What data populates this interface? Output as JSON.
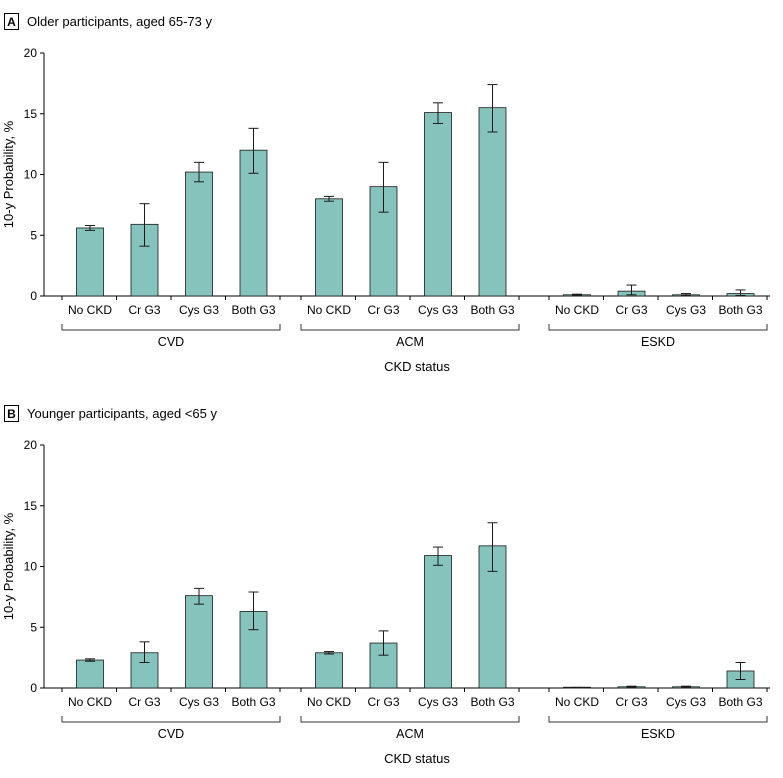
{
  "bar_color": "#86c3bc",
  "chart_data": [
    {
      "type": "bar",
      "panel_letter": "A",
      "title": "Older participants, aged 65-73 y",
      "ylabel": "10-y Probability, %",
      "xlabel": "CKD status",
      "ylim": [
        0,
        20
      ],
      "yticks": [
        0,
        5,
        10,
        15,
        20
      ],
      "categories": [
        "No CKD",
        "Cr G3",
        "Cys G3",
        "Both G3"
      ],
      "groups": [
        {
          "name": "CVD",
          "values": [
            5.6,
            5.9,
            10.2,
            12.0
          ],
          "err_low": [
            5.4,
            4.1,
            9.4,
            10.1
          ],
          "err_high": [
            5.8,
            7.6,
            11.0,
            13.8
          ]
        },
        {
          "name": "ACM",
          "values": [
            8.0,
            9.0,
            15.1,
            15.5
          ],
          "err_low": [
            7.8,
            6.9,
            14.2,
            13.5
          ],
          "err_high": [
            8.2,
            11.0,
            15.9,
            17.4
          ]
        },
        {
          "name": "ESKD",
          "values": [
            0.1,
            0.4,
            0.1,
            0.2
          ],
          "err_low": [
            0.05,
            0.1,
            0.05,
            0.05
          ],
          "err_high": [
            0.15,
            0.9,
            0.2,
            0.5
          ]
        }
      ]
    },
    {
      "type": "bar",
      "panel_letter": "B",
      "title": "Younger participants, aged <65 y",
      "ylabel": "10-y Probability, %",
      "xlabel": "CKD status",
      "ylim": [
        0,
        20
      ],
      "yticks": [
        0,
        5,
        10,
        15,
        20
      ],
      "categories": [
        "No CKD",
        "Cr G3",
        "Cys G3",
        "Both G3"
      ],
      "groups": [
        {
          "name": "CVD",
          "values": [
            2.3,
            2.9,
            7.6,
            6.3
          ],
          "err_low": [
            2.2,
            2.1,
            6.9,
            4.8
          ],
          "err_high": [
            2.4,
            3.8,
            8.2,
            7.9
          ]
        },
        {
          "name": "ACM",
          "values": [
            2.9,
            3.7,
            10.9,
            11.7
          ],
          "err_low": [
            2.8,
            2.7,
            10.1,
            9.6
          ],
          "err_high": [
            3.0,
            4.7,
            11.6,
            13.6
          ]
        },
        {
          "name": "ESKD",
          "values": [
            0.02,
            0.1,
            0.1,
            1.4
          ],
          "err_low": [
            0.01,
            0.05,
            0.05,
            0.7
          ],
          "err_high": [
            0.05,
            0.15,
            0.15,
            2.1
          ]
        }
      ]
    }
  ]
}
